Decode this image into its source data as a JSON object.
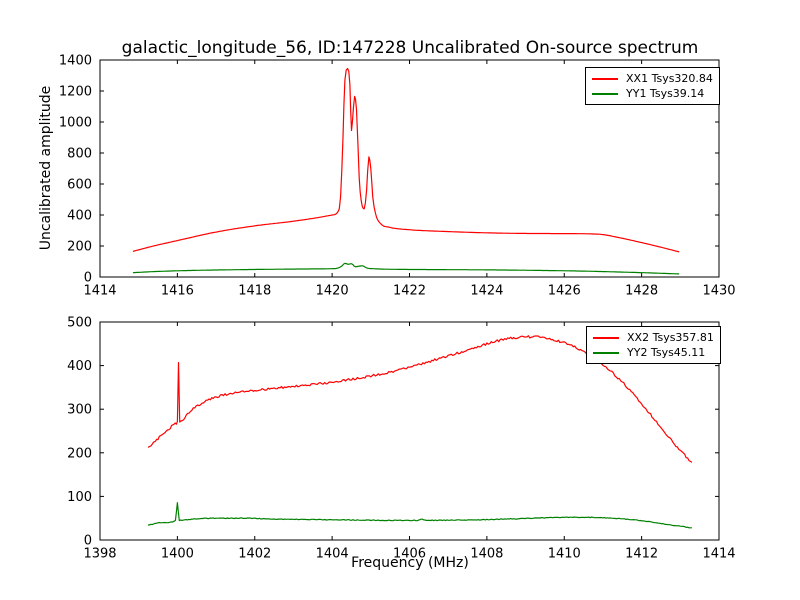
{
  "figure": {
    "title": "galactic_longitude_56, ID:147228 Uncalibrated On-source spectrum"
  },
  "chart_data": [
    {
      "type": "line",
      "title": "",
      "xlabel": "",
      "ylabel": "Uncalibrated amplitude",
      "xlim": [
        1414,
        1430
      ],
      "ylim": [
        0,
        1400
      ],
      "xticks": [
        1414,
        1416,
        1418,
        1420,
        1422,
        1424,
        1426,
        1428,
        1430
      ],
      "yticks": [
        0,
        200,
        400,
        600,
        800,
        1000,
        1200,
        1400
      ],
      "grid": false,
      "legend_position": "upper right",
      "series": [
        {
          "name": "XX1 Tsys320.84",
          "color": "#ff0000",
          "noise": 0.0,
          "x": [
            1414.85,
            1415.3,
            1416.0,
            1417.0,
            1418.0,
            1419.0,
            1419.6,
            1420.0,
            1420.15,
            1420.22,
            1420.28,
            1420.33,
            1420.4,
            1420.46,
            1420.5,
            1420.55,
            1420.58,
            1420.63,
            1420.7,
            1420.78,
            1420.83,
            1420.89,
            1420.95,
            1421.0,
            1421.05,
            1421.12,
            1421.25,
            1421.5,
            1422.0,
            1423.0,
            1424.0,
            1425.0,
            1426.0,
            1426.9,
            1427.4,
            1428.0,
            1428.5,
            1428.97
          ],
          "y": [
            165,
            195,
            235,
            290,
            330,
            360,
            382,
            400,
            420,
            520,
            900,
            1270,
            1345,
            1240,
            945,
            1090,
            1165,
            1080,
            640,
            455,
            440,
            560,
            775,
            700,
            520,
            410,
            345,
            320,
            305,
            293,
            285,
            281,
            280,
            276,
            255,
            222,
            192,
            162
          ]
        },
        {
          "name": "YY1 Tsys39.14",
          "color": "#008000",
          "noise": 0.0,
          "x": [
            1414.85,
            1415.5,
            1416.5,
            1417.5,
            1418.5,
            1419.5,
            1420.1,
            1420.25,
            1420.33,
            1420.42,
            1420.5,
            1420.6,
            1420.7,
            1420.78,
            1420.9,
            1421.1,
            1421.5,
            1422.5,
            1424.0,
            1425.5,
            1426.5,
            1427.3,
            1428.0,
            1428.97
          ],
          "y": [
            28,
            36,
            43,
            47,
            50,
            52,
            55,
            70,
            88,
            82,
            86,
            66,
            70,
            72,
            58,
            53,
            50,
            48,
            46,
            42,
            38,
            33,
            28,
            20
          ]
        }
      ]
    },
    {
      "type": "line",
      "title": "",
      "xlabel": "Frequency (MHz)",
      "ylabel": "",
      "xlim": [
        1398,
        1414
      ],
      "ylim": [
        0,
        500
      ],
      "xticks": [
        1398,
        1400,
        1402,
        1404,
        1406,
        1408,
        1410,
        1412,
        1414
      ],
      "yticks": [
        0,
        100,
        200,
        300,
        400,
        500
      ],
      "grid": false,
      "legend_position": "upper right",
      "series": [
        {
          "name": "XX2 Tsys357.81",
          "color": "#ff0000",
          "noise": 2.6,
          "x": [
            1399.24,
            1399.5,
            1399.75,
            1399.95,
            1400.0,
            1400.03,
            1400.06,
            1400.3,
            1400.6,
            1401.0,
            1401.5,
            1402.0,
            1402.5,
            1403.0,
            1403.5,
            1404.0,
            1404.5,
            1405.0,
            1405.5,
            1406.0,
            1406.5,
            1407.0,
            1407.5,
            1408.0,
            1408.5,
            1409.0,
            1409.4,
            1410.0,
            1410.5,
            1411.0,
            1411.5,
            1412.0,
            1412.5,
            1413.0,
            1413.3
          ],
          "y": [
            212,
            233,
            252,
            266,
            270,
            405,
            272,
            293,
            312,
            328,
            337,
            343,
            348,
            352,
            357,
            362,
            369,
            376,
            385,
            396,
            409,
            422,
            436,
            450,
            461,
            466,
            465,
            452,
            432,
            402,
            362,
            312,
            258,
            205,
            178
          ]
        },
        {
          "name": "YY2 Tsys45.11",
          "color": "#008000",
          "noise": 0.8,
          "x": [
            1399.24,
            1399.6,
            1399.95,
            1400.0,
            1400.05,
            1400.4,
            1401.0,
            1401.7,
            1402.5,
            1403.5,
            1404.5,
            1405.5,
            1406.2,
            1406.3,
            1406.4,
            1407.5,
            1408.5,
            1409.5,
            1410.3,
            1411.0,
            1411.6,
            1412.2,
            1412.7,
            1413.3
          ],
          "y": [
            34,
            40,
            44,
            85,
            45,
            48,
            50,
            50,
            48,
            47,
            46,
            45,
            45,
            48,
            45,
            46,
            48,
            51,
            52,
            51,
            48,
            42,
            35,
            28
          ]
        }
      ]
    }
  ]
}
